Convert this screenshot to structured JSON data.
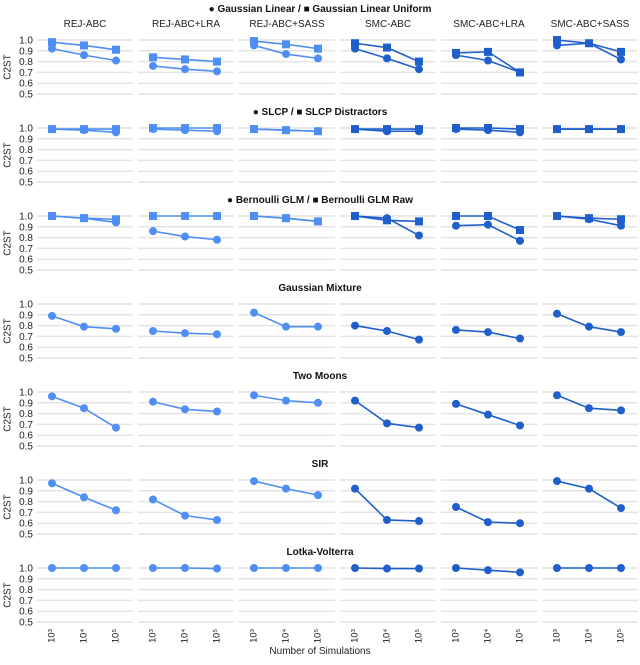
{
  "chart_data": {
    "type": "line",
    "xlabel": "Number of Simulations",
    "ylabel": "C2ST",
    "x": [
      "10³",
      "10⁴",
      "10⁵"
    ],
    "x_values": [
      1000,
      10000,
      100000
    ],
    "x_scale": "log",
    "ylim": [
      0.5,
      1.0
    ],
    "yticks": [
      "1.0",
      "0.9",
      "0.8",
      "0.7",
      "0.6",
      "0.5"
    ],
    "grid": true,
    "columns": [
      "REJ-ABC",
      "REJ-ABC+LRA",
      "REJ-ABC+SASS",
      "SMC-ABC",
      "SMC-ABC+LRA",
      "SMC-ABC+SASS"
    ],
    "column_colors": [
      "#4f8ff5",
      "#4f8ff5",
      "#4f8ff5",
      "#1f5fcc",
      "#1f5fcc",
      "#1f5fcc"
    ],
    "rows": [
      {
        "title": "● Gaussian Linear / ■ Gaussian Linear Uniform",
        "series": [
          {
            "name": "Gaussian Linear",
            "marker": "circle",
            "values": [
              [
                0.92,
                0.86,
                0.81
              ],
              [
                0.76,
                0.73,
                0.71
              ],
              [
                0.95,
                0.87,
                0.83
              ],
              [
                0.92,
                0.83,
                0.73
              ],
              [
                0.86,
                0.81,
                0.7
              ],
              [
                0.95,
                0.97,
                0.82
              ]
            ]
          },
          {
            "name": "Gaussian Linear Uniform",
            "marker": "square",
            "values": [
              [
                0.98,
                0.95,
                0.91
              ],
              [
                0.84,
                0.82,
                0.8
              ],
              [
                0.99,
                0.96,
                0.92
              ],
              [
                0.97,
                0.93,
                0.8
              ],
              [
                0.88,
                0.89,
                0.7
              ],
              [
                1.0,
                0.97,
                0.89
              ]
            ]
          }
        ]
      },
      {
        "title": "● SLCP / ■ SLCP Distractors",
        "series": [
          {
            "name": "SLCP",
            "marker": "circle",
            "values": [
              [
                0.99,
                0.98,
                0.96
              ],
              [
                0.99,
                0.98,
                0.97
              ],
              [
                0.99,
                0.98,
                0.97
              ],
              [
                0.99,
                0.97,
                0.97
              ],
              [
                0.99,
                0.98,
                0.96
              ],
              [
                0.99,
                0.99,
                0.99
              ]
            ]
          },
          {
            "name": "SLCP Distractors",
            "marker": "square",
            "values": [
              [
                0.99,
                0.99,
                0.99
              ],
              [
                1.0,
                1.0,
                1.0
              ],
              [
                0.99,
                0.98,
                0.97
              ],
              [
                0.99,
                0.99,
                0.99
              ],
              [
                1.0,
                1.0,
                0.99
              ],
              [
                0.99,
                0.99,
                0.99
              ]
            ]
          }
        ]
      },
      {
        "title": "● Bernoulli GLM / ■ Bernoulli GLM Raw",
        "series": [
          {
            "name": "Bernoulli GLM",
            "marker": "circle",
            "values": [
              [
                1.0,
                0.98,
                0.94
              ],
              [
                0.86,
                0.81,
                0.78
              ],
              [
                1.0,
                0.98,
                0.95
              ],
              [
                1.0,
                0.98,
                0.82
              ],
              [
                0.91,
                0.92,
                0.77
              ],
              [
                1.0,
                0.97,
                0.91
              ]
            ]
          },
          {
            "name": "Bernoulli GLM Raw",
            "marker": "square",
            "values": [
              [
                1.0,
                0.98,
                0.97
              ],
              [
                1.0,
                1.0,
                1.0
              ],
              [
                1.0,
                0.98,
                0.95
              ],
              [
                1.0,
                0.96,
                0.95
              ],
              [
                1.0,
                1.0,
                0.87
              ],
              [
                1.0,
                0.98,
                0.97
              ]
            ]
          }
        ]
      },
      {
        "title": "Gaussian Mixture",
        "series": [
          {
            "marker": "circle",
            "values": [
              [
                0.89,
                0.79,
                0.77
              ],
              [
                0.75,
                0.73,
                0.72
              ],
              [
                0.92,
                0.79,
                0.79
              ],
              [
                0.8,
                0.75,
                0.67
              ],
              [
                0.76,
                0.74,
                0.68
              ],
              [
                0.91,
                0.79,
                0.74
              ]
            ]
          }
        ]
      },
      {
        "title": "Two Moons",
        "series": [
          {
            "marker": "circle",
            "values": [
              [
                0.96,
                0.85,
                0.67
              ],
              [
                0.91,
                0.84,
                0.82
              ],
              [
                0.97,
                0.92,
                0.9
              ],
              [
                0.92,
                0.71,
                0.67
              ],
              [
                0.89,
                0.79,
                0.69
              ],
              [
                0.97,
                0.85,
                0.83
              ]
            ]
          }
        ]
      },
      {
        "title": "SIR",
        "series": [
          {
            "marker": "circle",
            "values": [
              [
                0.97,
                0.84,
                0.72
              ],
              [
                0.82,
                0.67,
                0.63
              ],
              [
                0.99,
                0.92,
                0.86
              ],
              [
                0.92,
                0.63,
                0.62
              ],
              [
                0.75,
                0.61,
                0.6
              ],
              [
                0.99,
                0.92,
                0.74
              ]
            ]
          }
        ]
      },
      {
        "title": "Lotka-Volterra",
        "series": [
          {
            "marker": "circle",
            "values": [
              [
                1.0,
                1.0,
                1.0
              ],
              [
                1.0,
                1.0,
                0.995
              ],
              [
                1.0,
                1.0,
                1.0
              ],
              [
                1.0,
                0.995,
                0.995
              ],
              [
                1.0,
                0.98,
                0.96
              ],
              [
                1.0,
                1.0,
                1.0
              ]
            ]
          }
        ]
      }
    ]
  }
}
